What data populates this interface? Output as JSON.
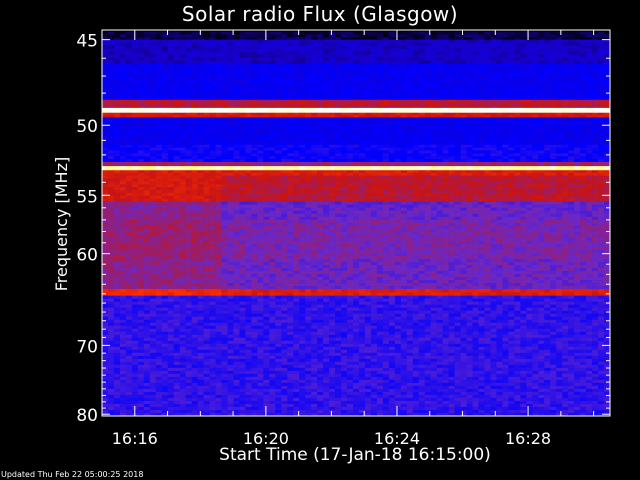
{
  "chart_data": {
    "type": "heatmap",
    "title": "Solar radio Flux (Glasgow)",
    "xlabel": "Start Time (17-Jan-18 16:15:00)",
    "ylabel": "Frequency [MHz]",
    "x_ticks": [
      "16:16",
      "16:20",
      "16:24",
      "16:28"
    ],
    "x_tick_minutes": [
      1,
      5,
      9,
      13
    ],
    "xlim_minutes": [
      0,
      15.5
    ],
    "y_ticks": [
      45,
      50,
      55,
      60,
      70,
      80
    ],
    "ylim_mhz": [
      44.5,
      80.3
    ],
    "y_scale": "reciprocal",
    "colormap": [
      "#000000",
      "#1a00c8",
      "#0000ff",
      "#6a28c8",
      "#c81414",
      "#ff3000",
      "#ffff80",
      "#ffffff"
    ],
    "bands": [
      {
        "from": 44.6,
        "to": 45.0,
        "level": 0.05
      },
      {
        "from": 45.0,
        "to": 46.3,
        "level": 0.15
      },
      {
        "from": 46.3,
        "to": 48.4,
        "level": 0.25
      },
      {
        "from": 48.4,
        "to": 48.9,
        "level": 0.55
      },
      {
        "from": 48.9,
        "to": 49.2,
        "level": 0.98
      },
      {
        "from": 49.2,
        "to": 49.5,
        "level": 0.6
      },
      {
        "from": 49.5,
        "to": 51.3,
        "level": 0.25
      },
      {
        "from": 51.3,
        "to": 52.5,
        "level": 0.3
      },
      {
        "from": 52.5,
        "to": 52.8,
        "level": 0.5
      },
      {
        "from": 52.8,
        "to": 53.1,
        "level": 0.9
      },
      {
        "from": 53.1,
        "to": 53.5,
        "level": 0.62
      },
      {
        "from": 53.5,
        "to": 55.5,
        "level": 0.55
      },
      {
        "from": 55.5,
        "to": 57.0,
        "level": 0.42
      },
      {
        "from": 57.0,
        "to": 60.5,
        "level": 0.45
      },
      {
        "from": 60.5,
        "to": 63.5,
        "level": 0.43
      },
      {
        "from": 63.5,
        "to": 64.2,
        "level": 0.62
      },
      {
        "from": 64.2,
        "to": 80.3,
        "level": 0.35
      }
    ],
    "update_note": "Updated Thu Feb 22 05:00:25 2018"
  }
}
